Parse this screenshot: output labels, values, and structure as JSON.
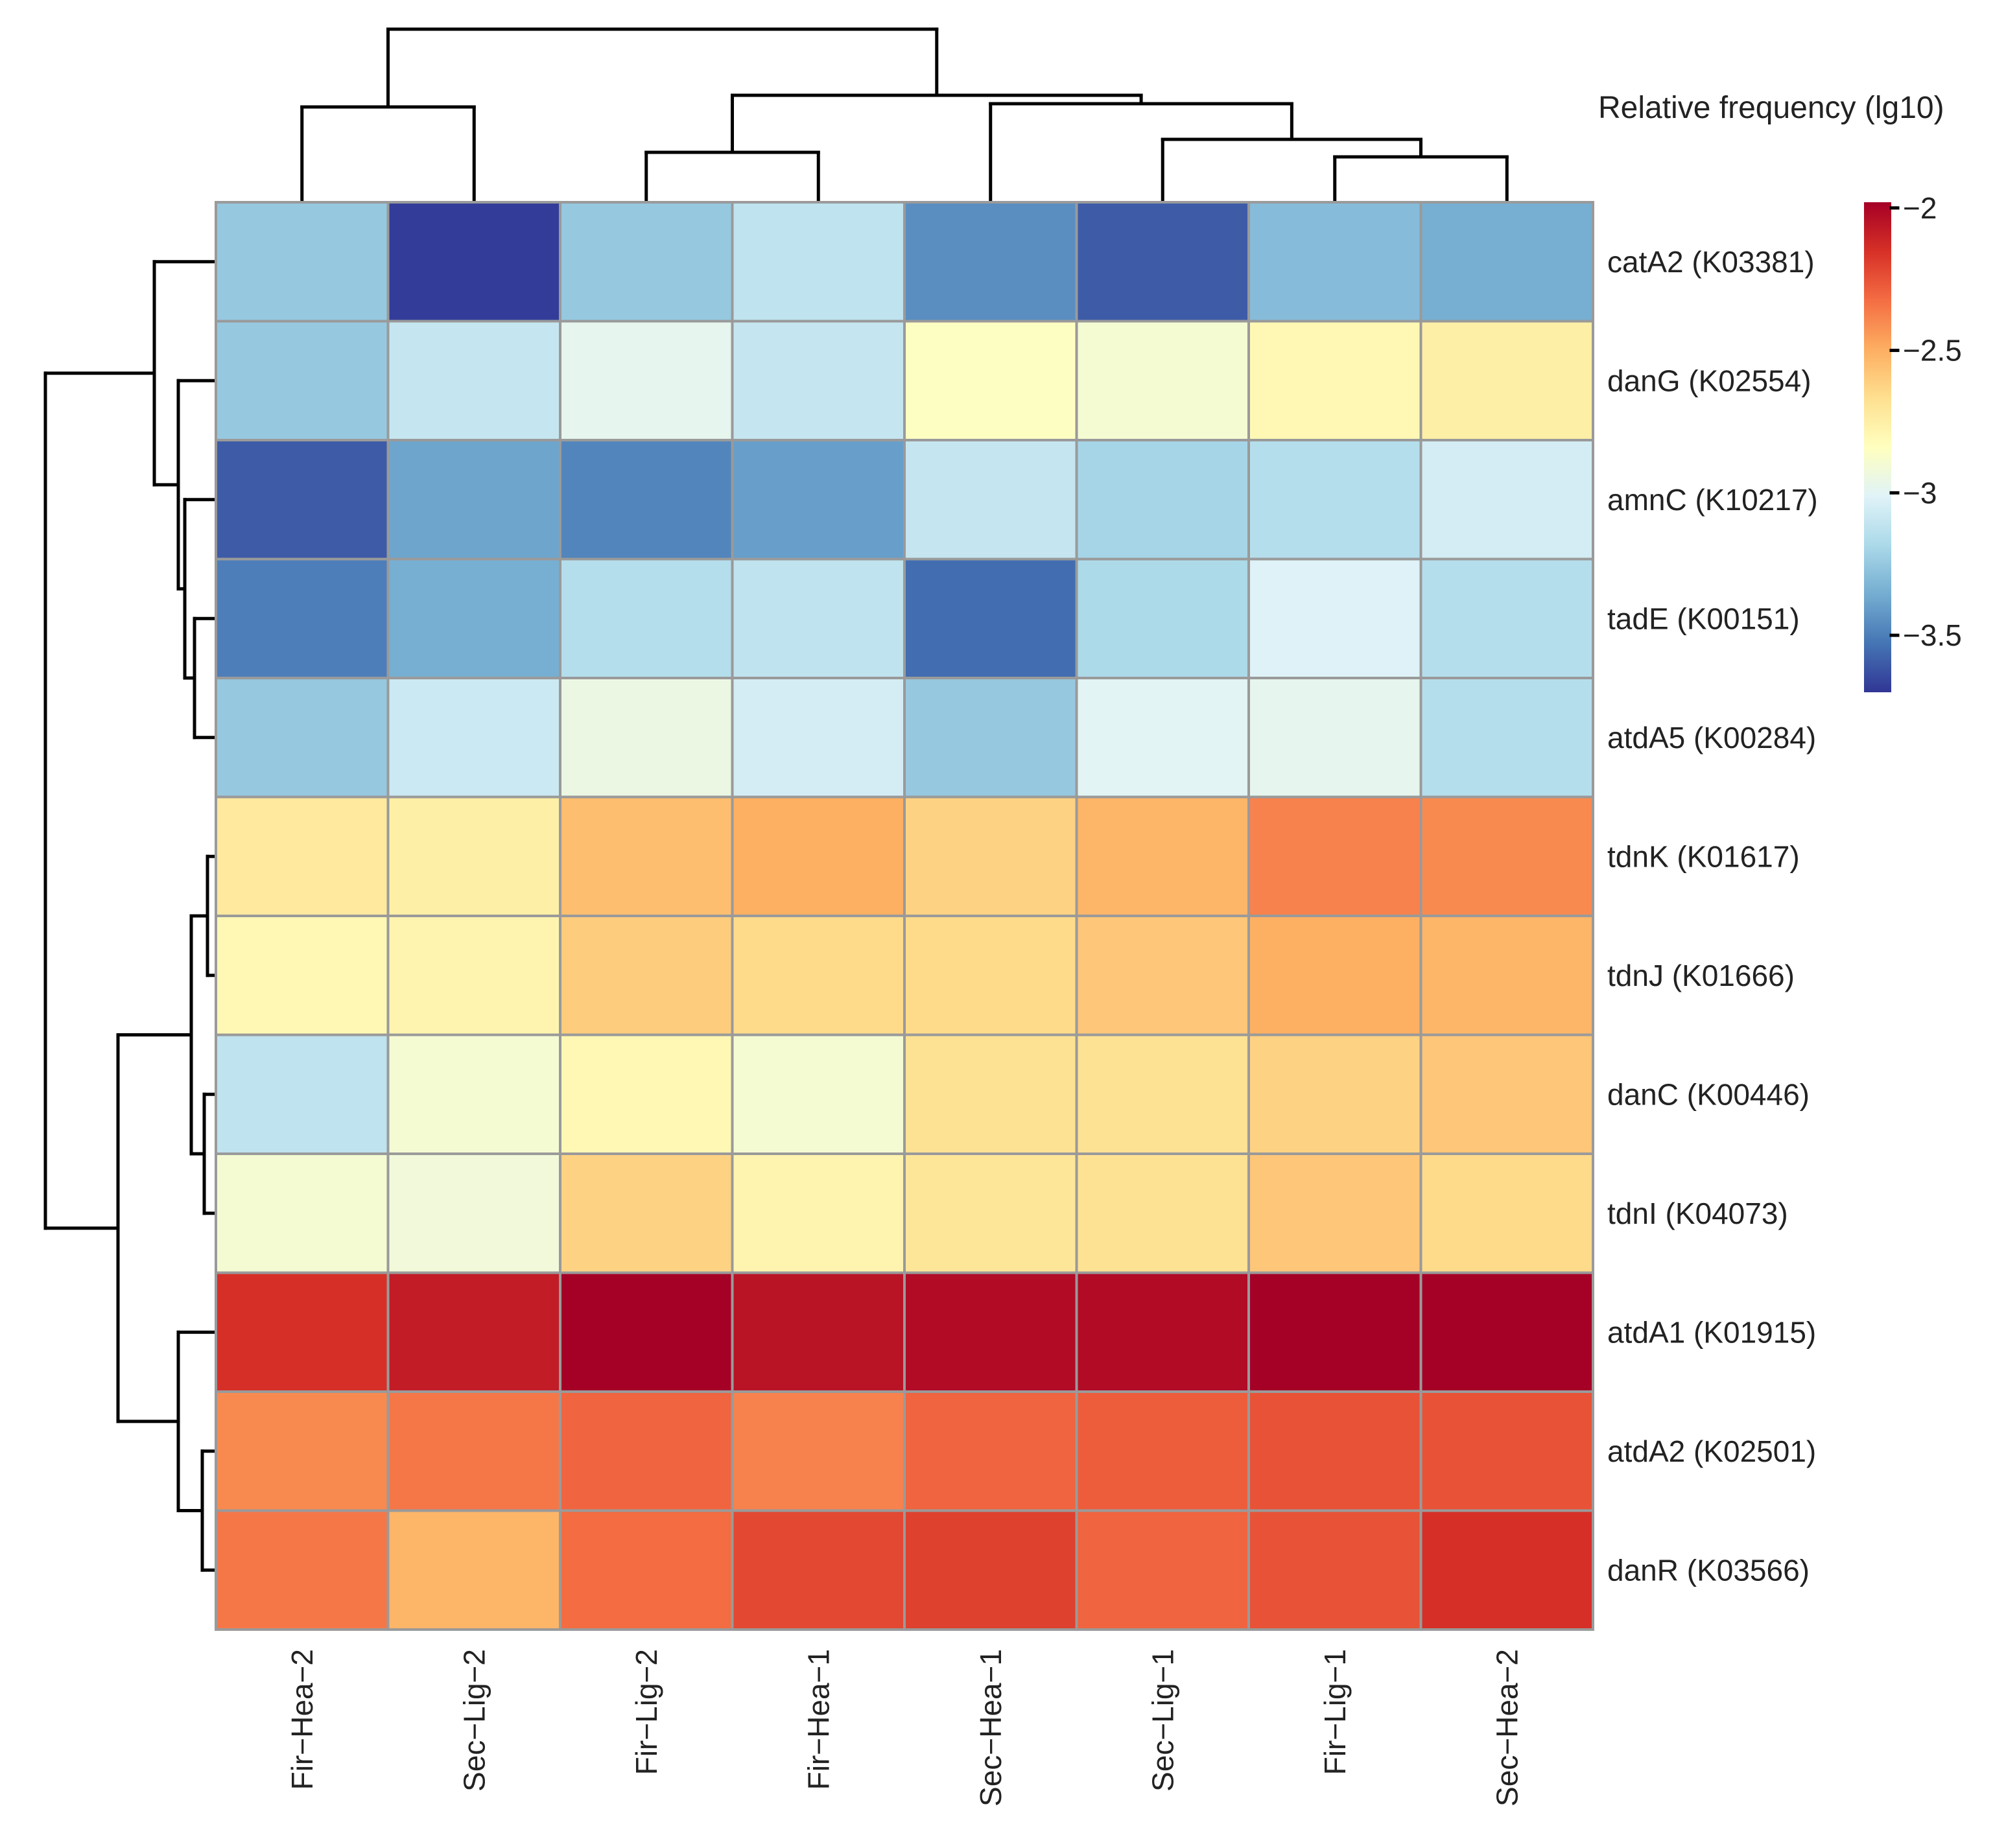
{
  "chart_data": {
    "type": "heatmap",
    "title": "",
    "legend_title": "Relative frequency (lg10)",
    "legend_ticks": [
      "−2",
      "−2.5",
      "−3",
      "−3.5"
    ],
    "legend_tick_values": [
      -2,
      -2.5,
      -3,
      -3.5
    ],
    "value_range": [
      -3.7,
      -1.98
    ],
    "color_stops": [
      "#313695",
      "#4575b4",
      "#74add1",
      "#abd9e9",
      "#e0f3f8",
      "#ffffbf",
      "#fee090",
      "#fdae61",
      "#f46d43",
      "#d73027",
      "#a50026"
    ],
    "columns": [
      "Fir−Hea−2",
      "Sec−Lig−2",
      "Fir−Lig−2",
      "Fir−Hea−1",
      "Sec−Hea−1",
      "Sec−Lig−1",
      "Fir−Lig−1",
      "Sec−Hea−2"
    ],
    "rows": [
      "catA2 (K03381)",
      "danG (K02554)",
      "amnC (K10217)",
      "tadE (K00151)",
      "atdA5 (K00284)",
      "tdnK (K01617)",
      "tdnJ (K01666)",
      "danC (K00446)",
      "tdnI (K04073)",
      "atdA1 (K01915)",
      "atdA2 (K02501)",
      "danR (K03566)"
    ],
    "values": [
      [
        -3.25,
        -3.68,
        -3.25,
        -3.12,
        -3.45,
        -3.6,
        -3.3,
        -3.35
      ],
      [
        -3.25,
        -3.1,
        -2.98,
        -3.1,
        -2.85,
        -2.9,
        -2.8,
        -2.75
      ],
      [
        -3.6,
        -3.38,
        -3.48,
        -3.4,
        -3.1,
        -3.2,
        -3.15,
        -3.05
      ],
      [
        -3.5,
        -3.35,
        -3.15,
        -3.12,
        -3.55,
        -3.18,
        -3.02,
        -3.15
      ],
      [
        -3.25,
        -3.08,
        -2.95,
        -3.05,
        -3.25,
        -3.0,
        -2.98,
        -3.15
      ],
      [
        -2.72,
        -2.75,
        -2.55,
        -2.5,
        -2.62,
        -2.52,
        -2.38,
        -2.4
      ],
      [
        -2.8,
        -2.78,
        -2.6,
        -2.65,
        -2.65,
        -2.58,
        -2.5,
        -2.52
      ],
      [
        -3.12,
        -2.9,
        -2.8,
        -2.9,
        -2.68,
        -2.68,
        -2.62,
        -2.58
      ],
      [
        -2.9,
        -2.92,
        -2.62,
        -2.78,
        -2.7,
        -2.68,
        -2.58,
        -2.65
      ],
      [
        -2.15,
        -2.08,
        -1.98,
        -2.05,
        -2.02,
        -2.02,
        -1.98,
        -1.98
      ],
      [
        -2.4,
        -2.35,
        -2.3,
        -2.38,
        -2.3,
        -2.28,
        -2.25,
        -2.25
      ],
      [
        -2.35,
        -2.52,
        -2.32,
        -2.22,
        -2.2,
        -2.3,
        -2.25,
        -2.15
      ]
    ]
  }
}
